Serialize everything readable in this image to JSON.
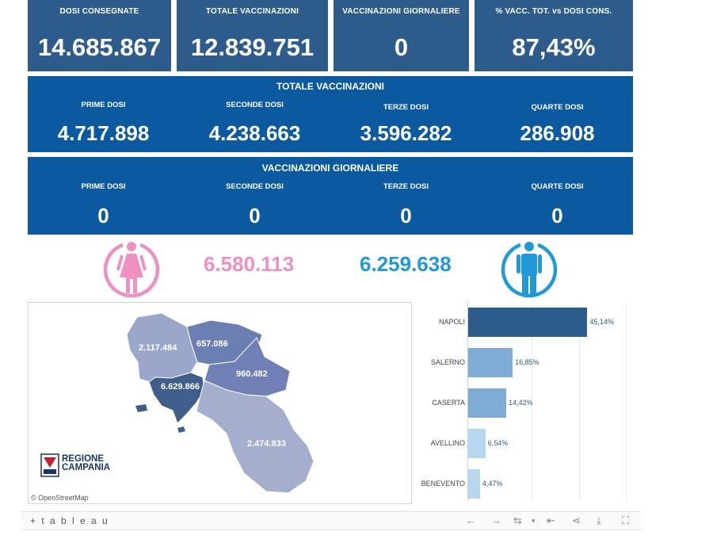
{
  "kpis": [
    {
      "label": "DOSI  CONSEGNATE",
      "value": "14.685.867"
    },
    {
      "label": "TOTALE VACCINAZIONI",
      "value": "12.839.751"
    },
    {
      "label": "VACCINAZIONI GIORNALIERE",
      "value": "0"
    },
    {
      "label": "% VACC. TOT. vs DOSI CONS.",
      "value": "87,43%"
    }
  ],
  "totale": {
    "title": "TOTALE VACCINAZIONI",
    "items": [
      {
        "label": "PRIME DOSI",
        "value": "4.717.898"
      },
      {
        "label": "SECONDE DOSI",
        "value": "4.238.663"
      },
      {
        "label": "TERZE DOSI",
        "value": "3.596.282"
      },
      {
        "label": "QUARTE DOSI",
        "value": "286.908"
      }
    ]
  },
  "giornaliere": {
    "title": "VACCINAZIONI GIORNALIERE",
    "items": [
      {
        "label": "PRIME DOSI",
        "value": "0"
      },
      {
        "label": "SECONDE DOSI",
        "value": "0"
      },
      {
        "label": "TERZE DOSI",
        "value": "0"
      },
      {
        "label": "QUARTE DOSI",
        "value": "0"
      }
    ]
  },
  "gender": {
    "female_value": "6.580.113",
    "male_value": "6.259.638",
    "female_color": "#ef8fc2",
    "male_color": "#1f9ad6",
    "female_icon": "female-person-icon",
    "male_icon": "male-person-icon"
  },
  "map": {
    "labels": [
      "2.117.484",
      "657.086",
      "960.482",
      "6.629.866",
      "2.474.833"
    ],
    "credit": "© OpenStreetMap",
    "logo_line1": "REGIONE",
    "logo_line2": "CAMPANIA"
  },
  "chart_data": {
    "type": "bar",
    "orientation": "horizontal",
    "categories": [
      "NAPOLI",
      "SALERNO",
      "CASERTA",
      "AVELLINO",
      "BENEVENTO"
    ],
    "values": [
      45.14,
      16.85,
      14.42,
      6.54,
      4.47
    ],
    "labels": [
      "45,14%",
      "16,85%",
      "14,42%",
      "6,54%",
      "4,47%"
    ],
    "colors": [
      "#2c5b8c",
      "#7eacd6",
      "#7eacd6",
      "#b7d6ef",
      "#b7d6ef"
    ],
    "xlim": [
      0,
      60
    ]
  },
  "toolbar": {
    "logo": "+ t a b l e a u"
  }
}
